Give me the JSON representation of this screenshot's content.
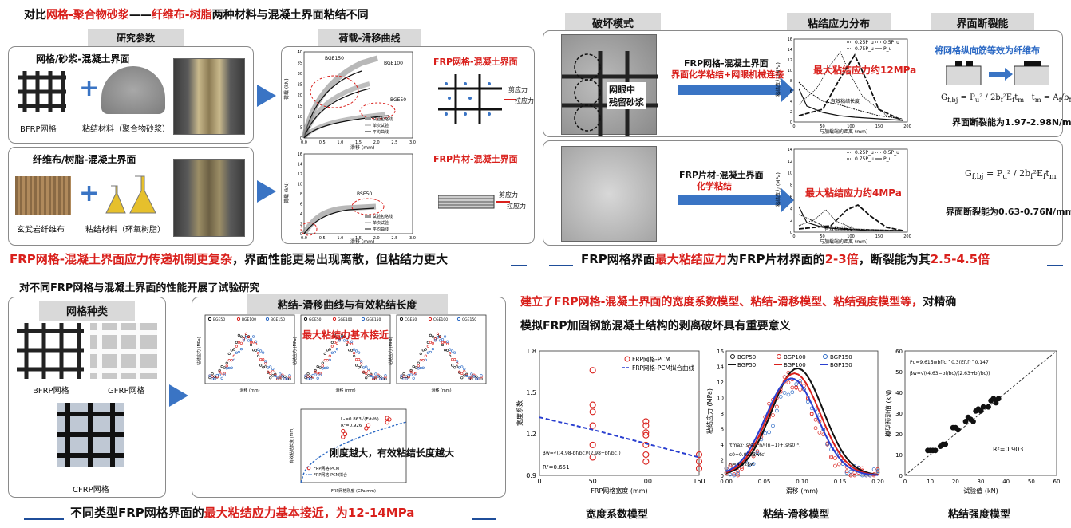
{
  "p1": {
    "title_a": "对比",
    "title_b": "网格-聚合物砂浆",
    "title_c": "——",
    "title_d": "纤维布-树脂",
    "title_e": "两种材料与混凝土界面粘结不同",
    "tab_params": "研究参数",
    "tab_curves": "荷载-滑移曲线",
    "box1_title": "网格/砂浆-混凝土界面",
    "box1_l1": "BFRP网格",
    "box1_l2": "粘结材料（聚合物砂浆）",
    "box2_title": "纤维布/树脂-混凝土界面",
    "box2_l1": "玄武岩纤维布",
    "box2_l2": "粘结材料（环氧树脂）",
    "frp_grid_label": "FRP网格-混凝土界面",
    "frp_sheet_label": "FRP片材-混凝土界面",
    "shear": "剪应力",
    "tension": "拉应力",
    "chart_a": {
      "ylabel": "荷载 (kN)",
      "xlabel": "滑移 (mm)",
      "s1": "BGE150",
      "s2": "BGE100",
      "s3": "BGE50",
      "leg1": "试验包络线",
      "leg2": "单次试验",
      "leg3": "平均曲线",
      "yticks": [
        "0",
        "5",
        "10",
        "15",
        "20",
        "25",
        "30",
        "35",
        "40"
      ],
      "xticks": [
        "0.0",
        "0.5",
        "1.0",
        "1.5",
        "2.0",
        "2.5",
        "3.0"
      ]
    },
    "chart_b": {
      "ylabel": "荷载 (kN)",
      "xlabel": "滑移 (mm)",
      "s1": "BSE50",
      "leg1": "试验包络线",
      "leg2": "单次试验",
      "leg3": "平均曲线",
      "yticks": [
        "0",
        "2",
        "4",
        "6",
        "8",
        "10",
        "12",
        "14",
        "16"
      ],
      "xticks": [
        "0.0",
        "0.5",
        "1.0",
        "1.5",
        "2.0",
        "2.5",
        "3.0"
      ]
    },
    "footer_a": "FRP网格-混凝土界面应力传递机制更复杂",
    "footer_b": "，界面性能更易出现离散，但粘结力更大"
  },
  "p2": {
    "tab_fail": "破坏模式",
    "tab_dist": "粘结应力分布",
    "tab_frac": "界面断裂能",
    "frp_grid_iface": "FRP网格-混凝土界面",
    "iface_desc": "界面化学粘结+网眼机械连接",
    "mortar_note": "网眼中\n残留砂浆",
    "max_grid": "最大粘结应力约12MPa",
    "bond_len": "有效粘结长度",
    "frp_sheet_iface": "FRP片材-混凝土界面",
    "chem": "化学粘结",
    "max_sheet": "最大粘结应力约4MPa",
    "equiv": "将网格纵向筋等效为纤维布",
    "frac_grid": "界面断裂能为1.97-2.98N/mm",
    "frac_sheet": "界面断裂能为0.63-0.76N/mm",
    "xlabel": "与加载端的距离 (mm)",
    "ylabel": "粘结应力 (MPa)",
    "leg": [
      "0.25P_u",
      "0.5P_u",
      "0.75P_u",
      "P_u"
    ],
    "yticks1": [
      "0",
      "2",
      "4",
      "6",
      "8",
      "10",
      "12",
      "14",
      "16"
    ],
    "yticks2": [
      "0",
      "2",
      "4",
      "6",
      "8",
      "10",
      "12",
      "14"
    ],
    "xticks": [
      "0",
      "50",
      "100",
      "150",
      "200"
    ],
    "footer_a": "FRP网格界面",
    "footer_b": "最大粘结应力",
    "footer_c": "为FRP片材界面的",
    "footer_d": "2-3倍",
    "footer_e": "，断裂能为其",
    "footer_f": "2.5-4.5倍"
  },
  "p3": {
    "title": "对不同FRP网格与混凝土界面的性能开展了试验研究",
    "tab_types": "网格种类",
    "tab_curves": "粘结-滑移曲线与有效粘结长度",
    "bfrp": "BFRP网格",
    "gfrp": "GFRP网格",
    "cfrp": "CFRP网格",
    "max_note": "最大粘结力基本接近",
    "stiff_note": "刚度越大，有效粘结长度越大",
    "leg_b": [
      "BGE50",
      "BGE100",
      "BGE150"
    ],
    "leg_g": [
      "GGE50",
      "GGE100",
      "GGE150"
    ],
    "leg_c": [
      "CGE50",
      "CGE100",
      "CGE150"
    ],
    "slip": "滑移 (mm)",
    "stress": "粘结应力 (MPa)",
    "len_y": "有效粘结长度 (mm)",
    "len_x": "FRP网格刚度 (GPa·mm)",
    "len_leg1": "FRP网格-PCM",
    "len_leg2": "FRP网格-PCM拟合",
    "r2": "R²=0.926",
    "le_formula": "Lₑ=0.863√(Eₜtₜ/fₜ)",
    "footer_a": "不同类型FRP网格界面的",
    "footer_b": "最大粘结应力基本接近，为12-14MPa"
  },
  "p4": {
    "title_line1": "建立了FRP网格-混凝土界面的宽度系数模型、粘结-滑移模型、粘结强度模型等，",
    "title_line1b": "对精确",
    "title_line2": "模拟FRP加固钢筋混凝土结构的剥离破坏具有重要意义",
    "m1": "宽度系数模型",
    "m2": "粘结-滑移模型",
    "m3": "粘结强度模型",
    "c1_ylabel": "宽度系数",
    "c1_xlabel": "FRP网格宽度 (mm)",
    "c1_leg1": "FRP网格-PCM",
    "c1_leg2": "FRP网格-PCM拟合曲线",
    "c1_formula": "βw=√((4.98-bf/bc)/(2.98+bf/bc))",
    "c1_r2": "R²=0.651",
    "c2_ylabel": "粘结应力 (MPa)",
    "c2_xlabel": "滑移 (mm)",
    "c2_leg": [
      "BGP50",
      "BGP100",
      "BGP150",
      "BGP50",
      "BGP100",
      "BGP150"
    ],
    "c2_f1": "τmax·(s/s0)·n/((n−1)+(s/s0)ⁿ)",
    "c2_f2": "s0=0.032βwfc′",
    "c2_f3": "n=4.92βw",
    "c3_ylabel": "模型预测值 (kN)",
    "c3_xlabel": "试验值 (kN)",
    "c3_f1": "Pu=9.61βwbffc′^0.3(Eftf)^0.147",
    "c3_f2": "βw=√((4.63−bf/bc)/(2.63+bf/bc))",
    "c3_r2": "R²=0.903"
  },
  "chart_data": [
    {
      "type": "scatter",
      "title": "宽度系数模型",
      "xlabel": "FRP网格宽度 (mm)",
      "ylabel": "宽度系数",
      "xlim": [
        0,
        150
      ],
      "ylim": [
        0.9,
        1.8
      ],
      "xticks": [
        "0",
        "50",
        "100",
        "150"
      ],
      "yticks": [
        "0.9",
        "1.2",
        "1.5",
        "1.8"
      ],
      "series": [
        {
          "name": "FRP网格-PCM",
          "x": [
            50,
            50,
            50,
            50,
            50,
            50,
            100,
            100,
            100,
            100,
            100,
            100,
            100,
            150,
            150,
            150
          ],
          "y": [
            1.66,
            1.41,
            1.36,
            1.26,
            1.12,
            1.03,
            1.29,
            1.26,
            1.21,
            1.19,
            1.12,
            1.05,
            1.0,
            1.05,
            1.0,
            0.95
          ]
        },
        {
          "name": "FRP网格-PCM拟合曲线",
          "x": [
            0,
            50,
            100,
            150
          ],
          "y": [
            1.32,
            1.23,
            1.13,
            1.03
          ]
        }
      ]
    },
    {
      "type": "scatter",
      "title": "粘结强度模型",
      "xlabel": "试验值 (kN)",
      "ylabel": "模型预测值 (kN)",
      "xlim": [
        0,
        60
      ],
      "ylim": [
        0,
        60
      ],
      "xticks": [
        "0",
        "10",
        "20",
        "30",
        "40",
        "50",
        "60"
      ],
      "yticks": [
        "0",
        "10",
        "20",
        "30",
        "40",
        "50",
        "60"
      ],
      "series": [
        {
          "name": "试验点",
          "x": [
            9,
            10,
            11,
            12,
            14,
            15,
            16,
            19,
            20,
            21,
            24,
            25,
            26,
            27,
            28,
            29,
            30,
            31,
            33,
            34,
            35,
            36,
            37
          ],
          "y": [
            12,
            12,
            12,
            12,
            14,
            15,
            15,
            23,
            23,
            22,
            26,
            28,
            27,
            26,
            31,
            32,
            31,
            33,
            33,
            36,
            37,
            35,
            37
          ]
        }
      ]
    }
  ]
}
